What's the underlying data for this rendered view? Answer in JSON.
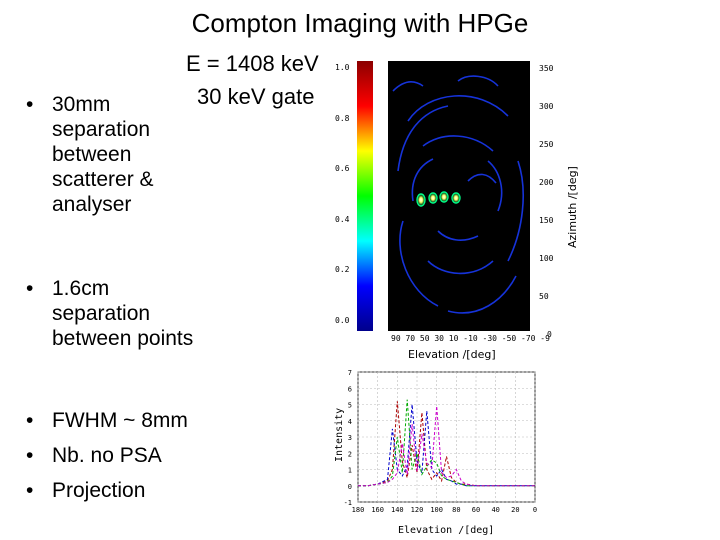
{
  "slide": {
    "title": "Compton Imaging with HPGe",
    "subtitle_line1": "E = 1408 keV",
    "subtitle_line2": "30 keV gate"
  },
  "bullet_groups": [
    {
      "items": [
        {
          "lines": [
            "30mm",
            "separation",
            "between",
            "scatterer &",
            "analyser"
          ]
        }
      ]
    },
    {
      "items": [
        {
          "lines": [
            "1.6cm",
            "separation",
            "between points"
          ]
        }
      ]
    },
    {
      "items": [
        {
          "lines": [
            "FWHM ~ 8mm"
          ]
        },
        {
          "lines": [
            "Nb. no PSA"
          ]
        },
        {
          "lines": [
            "Projection"
          ]
        }
      ]
    }
  ],
  "colorbar": {
    "ticks": [
      "1.0",
      "0.8",
      "0.6",
      "0.4",
      "0.2",
      "0.0"
    ],
    "colors": [
      "#8b0000",
      "#ff0000",
      "#ffff00",
      "#00ff00",
      "#00ffff",
      "#0000ff",
      "#00008b"
    ]
  },
  "image_panel": {
    "background": "#000000",
    "right_ticks": [
      "350",
      "300",
      "250",
      "200",
      "150",
      "100",
      "50",
      "0"
    ],
    "bottom_ticks": "90 70 50 30 10 -10 -30 -50 -70 -9",
    "xlabel": "Elevation /[deg]",
    "ylabel": "Azimuth /[deg]"
  },
  "chart_data": {
    "type": "line",
    "xlabel": "Elevation /[deg]",
    "ylabel": "Intensity",
    "x_ticks": [
      "180",
      "160",
      "140",
      "120",
      "100",
      "80",
      "60",
      "40",
      "20",
      "0"
    ],
    "y_ticks": [
      "7",
      "6",
      "5",
      "4",
      "3",
      "2",
      "1",
      "0",
      "-1"
    ],
    "xlim": [
      180,
      0
    ],
    "ylim": [
      -1,
      7
    ],
    "grid": true,
    "series": [
      {
        "color": "#aa0000",
        "x": [
          180,
          170,
          160,
          150,
          145,
          140,
          135,
          130,
          125,
          120,
          115,
          110,
          105,
          100,
          95,
          90,
          85,
          80,
          75,
          70,
          60,
          40,
          20,
          0
        ],
        "y": [
          0,
          0,
          0.1,
          0.3,
          1,
          5.2,
          1.5,
          0.5,
          2.5,
          0.8,
          4.5,
          1,
          0.4,
          0.8,
          0.3,
          1.8,
          0.5,
          0.2,
          0.1,
          0.1,
          0,
          0,
          0,
          0
        ]
      },
      {
        "color": "#0000cc",
        "x": [
          180,
          170,
          160,
          150,
          145,
          140,
          135,
          130,
          125,
          120,
          115,
          110,
          105,
          100,
          95,
          90,
          85,
          80,
          75,
          70,
          60,
          40,
          20,
          0
        ],
        "y": [
          0,
          0,
          0.1,
          0.4,
          3.5,
          1,
          0.6,
          1.2,
          5,
          1.5,
          0.8,
          4.6,
          1,
          0.6,
          1,
          0.4,
          0.3,
          0.1,
          0.1,
          0,
          0,
          0,
          0,
          0
        ]
      },
      {
        "color": "#00aa00",
        "x": [
          180,
          170,
          160,
          150,
          145,
          140,
          135,
          130,
          125,
          120,
          115,
          110,
          105,
          100,
          95,
          90,
          85,
          80,
          75,
          70,
          60,
          40,
          20,
          0
        ],
        "y": [
          0,
          0,
          0.1,
          0.2,
          0.6,
          3,
          0.8,
          5.3,
          1,
          2,
          0.7,
          1.2,
          1.6,
          1.4,
          0.6,
          0.4,
          0.3,
          0.2,
          0.1,
          0,
          0,
          0,
          0,
          0
        ]
      },
      {
        "color": "#cc00cc",
        "x": [
          180,
          170,
          160,
          150,
          145,
          140,
          135,
          130,
          125,
          120,
          115,
          110,
          105,
          100,
          95,
          90,
          85,
          80,
          75,
          70,
          60,
          40,
          20,
          0
        ],
        "y": [
          0,
          0,
          0.1,
          0.2,
          0.4,
          0.8,
          2.6,
          0.7,
          3.8,
          0.9,
          3.2,
          1.4,
          1.1,
          4.9,
          0.8,
          0.5,
          0.6,
          1,
          0.3,
          0.1,
          0,
          0,
          0,
          0
        ]
      }
    ]
  }
}
